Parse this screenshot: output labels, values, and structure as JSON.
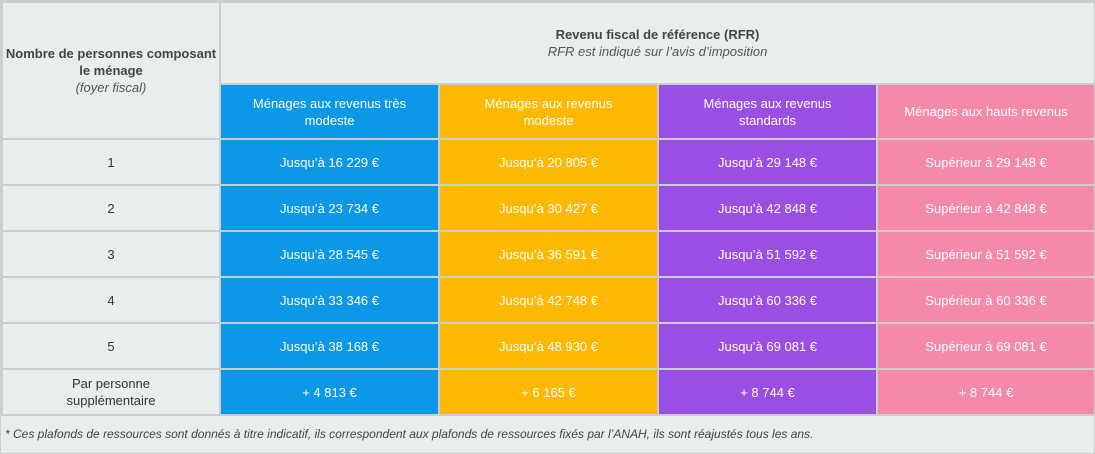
{
  "header": {
    "household_label": "Nombre de personnes composant le ménage",
    "household_sub": "(foyer fiscal)",
    "rfr_title": "Revenu fiscal de référence (RFR)",
    "rfr_sub": "RFR est indiqué sur l’avis d’imposition"
  },
  "categories": [
    {
      "label": "Ménages aux revenus très modeste",
      "color": "#0b98e6"
    },
    {
      "label": "Ménages aux revenus modeste",
      "color": "#fdb900"
    },
    {
      "label": "Ménages aux revenus standards",
      "color": "#9a4ee3"
    },
    {
      "label": "Ménages aux hauts revenus",
      "color": "#f58aa8"
    }
  ],
  "rows": [
    {
      "persons": "1",
      "values": [
        "Jusqu’à 16 229 €",
        "Jusqu’à 20 805 €",
        "Jusqu’à 29 148 €",
        "Supérieur à 29 148 €"
      ]
    },
    {
      "persons": "2",
      "values": [
        "Jusqu’à 23 734 €",
        "Jusqu’à 30 427 €",
        "Jusqu’à 42 848 €",
        "Supérieur à 42 848 €"
      ]
    },
    {
      "persons": "3",
      "values": [
        "Jusqu’à 28 545 €",
        "Jusqu’à 36 591 €",
        "Jusqu’à 51 592 €",
        "Supérieur à 51 592 €"
      ]
    },
    {
      "persons": "4",
      "values": [
        "Jusqu’à 33 346 €",
        "Jusqu’à 42 748 €",
        "Jusqu’à 60 336 €",
        "Supérieur à 60 336 €"
      ]
    },
    {
      "persons": "5",
      "values": [
        "Jusqu’à 38 168 €",
        "Jusqu’à 48 930 €",
        "Jusqu’à 69 081 €",
        "Supérieur à 69 081 €"
      ]
    },
    {
      "persons": "Par personne supplémentaire",
      "values": [
        "+ 4 813 €",
        "+ 6 165 €",
        "+ 8 744 €",
        "+ 8 744 €"
      ]
    }
  ],
  "footnote": "* Ces plafonds de ressources sont donnés à titre indicatif, ils correspondent aux plafonds de ressources fixés par l’ANAH, ils sont réajustés tous les ans."
}
